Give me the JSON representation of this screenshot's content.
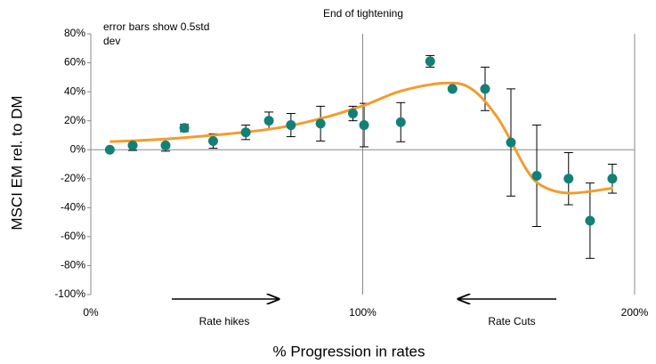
{
  "chart_data": {
    "type": "scatter",
    "annotations": {
      "note": "error bars show 0.5std dev",
      "top": "End of tightening",
      "left_arrow": "Rate hikes",
      "right_arrow": "Rate Cuts"
    },
    "x_label": "% Progression in rates",
    "y_label": "MSCI EM rel. to DM",
    "points": {
      "color": "#138078",
      "x": [
        7,
        15.4,
        27.5,
        34.4,
        45,
        57,
        65.5,
        73.6,
        84.5,
        96.4,
        100.5,
        114,
        124.8,
        133,
        145,
        154.5,
        164,
        175.7,
        183.6,
        191.8
      ],
      "y": [
        0,
        3,
        3,
        15,
        6,
        12,
        20,
        17,
        18,
        25,
        17,
        19,
        61,
        42,
        42,
        5,
        -18,
        -20,
        -49,
        -20
      ],
      "err": [
        1,
        3.5,
        4,
        2.5,
        5,
        5,
        6,
        8,
        12,
        5,
        15,
        13.5,
        4,
        1,
        15,
        37,
        35,
        18,
        26,
        10
      ]
    },
    "curve": {
      "color": "#f39c2c",
      "x": [
        7,
        32,
        65,
        84.5,
        101,
        114,
        130,
        140,
        150,
        160,
        166,
        176,
        192
      ],
      "y": [
        5.5,
        8,
        14,
        21.5,
        31,
        40.5,
        46,
        42,
        21,
        -13,
        -25,
        -30,
        -26.5
      ]
    },
    "xlim": [
      0,
      200
    ],
    "xticks": [
      {
        "value": 0,
        "label": "0%"
      },
      {
        "value": 100,
        "label": "100%"
      },
      {
        "value": 200,
        "label": "200%"
      }
    ],
    "ylim": [
      -100,
      80
    ],
    "yticks": [
      {
        "value": -100,
        "label": "-100%"
      },
      {
        "value": -80,
        "label": "-80%"
      },
      {
        "value": -60,
        "label": "-60%"
      },
      {
        "value": -40,
        "label": "-40%"
      },
      {
        "value": -20,
        "label": "-20%"
      },
      {
        "value": 0,
        "label": "0%"
      },
      {
        "value": 20,
        "label": "20%"
      },
      {
        "value": 40,
        "label": "40%"
      },
      {
        "value": 60,
        "label": "60%"
      },
      {
        "value": 80,
        "label": "80%"
      }
    ]
  }
}
